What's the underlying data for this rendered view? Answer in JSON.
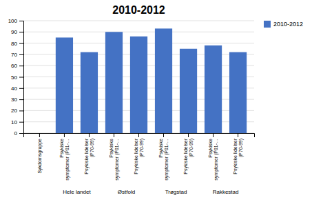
{
  "chart_data": {
    "type": "bar",
    "title": "2010-2012",
    "categories": [
      "Sykdomsgruppe",
      "Psykiske\nsymptomer (P01-…",
      "Psykiske lidelser\n(P70-99)",
      "Psykiske\nsymptomer (P01-…",
      "Psykiske lidelser\n(P70-99)",
      "Psykiske\nsymptomer (P01-…",
      "Psykiske lidelser\n(P70-99)",
      "Psykiske\nsymptomer (P01-…",
      "Psykiske lidelser\n(P70-99)"
    ],
    "series": [
      {
        "name": "2010-2012",
        "color": "#4472C4",
        "values": [
          0,
          85,
          72,
          90,
          86,
          93,
          75,
          78,
          72
        ]
      }
    ],
    "ylim": [
      0,
      100
    ],
    "yticks": [
      0,
      10,
      20,
      30,
      40,
      50,
      60,
      70,
      80,
      90,
      100
    ],
    "grid": true,
    "legend": "right",
    "annotations": [
      {
        "text": "Hele landet",
        "x": 1.5
      },
      {
        "text": "Østfold",
        "x": 3.5
      },
      {
        "text": "Trøgstad",
        "x": 5.5
      },
      {
        "text": "Rakkestad",
        "x": 7.5
      }
    ]
  }
}
